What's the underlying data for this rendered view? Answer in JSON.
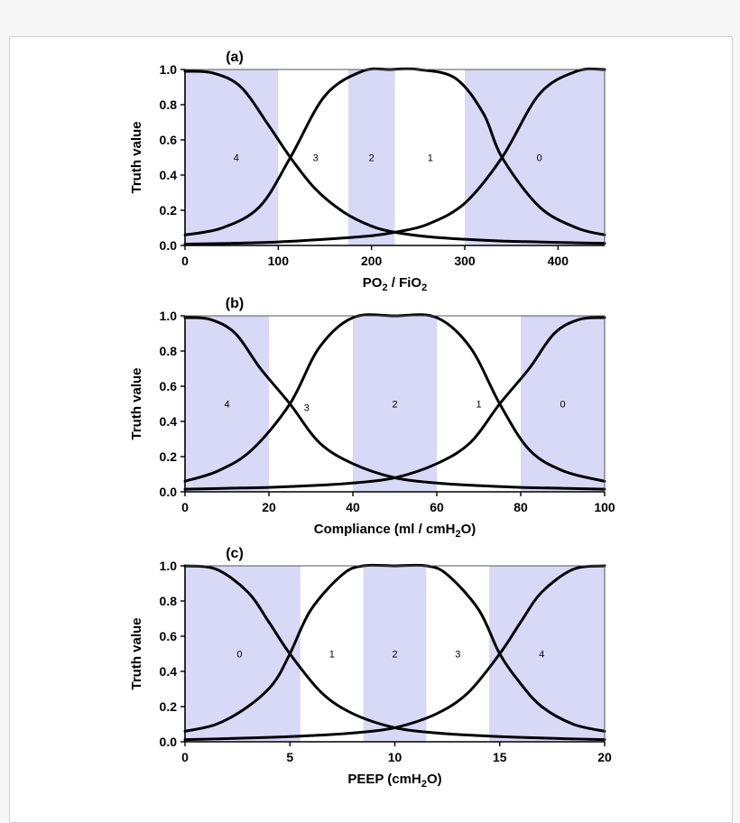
{
  "chart_data": [
    {
      "type": "line",
      "panel_label": "(a)",
      "xlabel": "PO2 / FiO2",
      "ylabel": "Truth value",
      "xlim": [
        0,
        450
      ],
      "ylim": [
        0,
        1.0
      ],
      "xticks": [
        "0",
        "100",
        "200",
        "300",
        "400"
      ],
      "xtick_values": [
        0,
        100,
        200,
        300,
        400
      ],
      "yticks": [
        "0.0",
        "0.2",
        "0.4",
        "0.6",
        "0.8",
        "1.0"
      ],
      "ytick_values": [
        0,
        0.2,
        0.4,
        0.6,
        0.8,
        1.0
      ],
      "shaded_bands": [
        [
          0,
          100
        ],
        [
          175,
          225
        ],
        [
          300,
          450
        ]
      ],
      "shade_color": "#d8d8f7",
      "curve_color": "#000000",
      "region_labels": [
        {
          "label": "4",
          "x": 55,
          "y": 0.5
        },
        {
          "label": "3",
          "x": 140,
          "y": 0.5
        },
        {
          "label": "2",
          "x": 200,
          "y": 0.5
        },
        {
          "label": "1",
          "x": 263,
          "y": 0.5
        },
        {
          "label": "0",
          "x": 380,
          "y": 0.5
        }
      ],
      "series": [
        {
          "x": [
            0,
            30,
            60,
            90,
            113,
            140,
            170,
            200,
            225,
            260,
            300,
            340,
            380,
            420,
            450
          ],
          "y": [
            0.99,
            0.98,
            0.9,
            0.68,
            0.5,
            0.32,
            0.19,
            0.11,
            0.075,
            0.05,
            0.035,
            0.025,
            0.02,
            0.015,
            0.012
          ]
        },
        {
          "x": [
            0,
            40,
            80,
            113,
            150,
            190,
            220,
            250,
            290,
            320,
            340,
            380,
            420,
            450
          ],
          "y": [
            0.06,
            0.1,
            0.22,
            0.5,
            0.85,
            0.99,
            1.0,
            1.0,
            0.95,
            0.75,
            0.5,
            0.22,
            0.1,
            0.06
          ]
        },
        {
          "x": [
            0,
            50,
            100,
            150,
            200,
            225,
            260,
            300,
            340,
            380,
            420,
            450
          ],
          "y": [
            0.008,
            0.012,
            0.02,
            0.035,
            0.055,
            0.075,
            0.12,
            0.24,
            0.5,
            0.86,
            0.99,
            1.0
          ]
        }
      ]
    },
    {
      "type": "line",
      "panel_label": "(b)",
      "xlabel": "Compliance (ml / cmH2O)",
      "ylabel": "Truth value",
      "xlim": [
        0,
        100
      ],
      "ylim": [
        0,
        1.0
      ],
      "xticks": [
        "0",
        "20",
        "40",
        "60",
        "80",
        "100"
      ],
      "xtick_values": [
        0,
        20,
        40,
        60,
        80,
        100
      ],
      "yticks": [
        "0.0",
        "0.2",
        "0.4",
        "0.6",
        "0.8",
        "1.0"
      ],
      "ytick_values": [
        0,
        0.2,
        0.4,
        0.6,
        0.8,
        1.0
      ],
      "shaded_bands": [
        [
          0,
          20
        ],
        [
          40,
          60
        ],
        [
          80,
          100
        ]
      ],
      "shade_color": "#d8d8f7",
      "curve_color": "#000000",
      "region_labels": [
        {
          "label": "4",
          "x": 10,
          "y": 0.5
        },
        {
          "label": "3",
          "x": 29,
          "y": 0.48
        },
        {
          "label": "2",
          "x": 50,
          "y": 0.5
        },
        {
          "label": "1",
          "x": 70,
          "y": 0.5
        },
        {
          "label": "0",
          "x": 90,
          "y": 0.5
        }
      ],
      "series": [
        {
          "x": [
            0,
            6,
            12,
            18,
            25,
            32,
            40,
            50,
            60,
            70,
            80,
            90,
            100
          ],
          "y": [
            0.99,
            0.98,
            0.9,
            0.7,
            0.5,
            0.28,
            0.16,
            0.08,
            0.05,
            0.035,
            0.025,
            0.02,
            0.015
          ]
        },
        {
          "x": [
            0,
            8,
            16,
            25,
            32,
            40,
            50,
            60,
            68,
            75,
            82,
            90,
            100
          ],
          "y": [
            0.06,
            0.12,
            0.24,
            0.5,
            0.82,
            0.99,
            1.0,
            0.99,
            0.82,
            0.5,
            0.24,
            0.12,
            0.06
          ]
        },
        {
          "x": [
            0,
            10,
            20,
            30,
            40,
            50,
            60,
            68,
            75,
            82,
            88,
            94,
            100
          ],
          "y": [
            0.015,
            0.02,
            0.025,
            0.035,
            0.05,
            0.08,
            0.16,
            0.28,
            0.5,
            0.7,
            0.9,
            0.98,
            0.99
          ]
        }
      ]
    },
    {
      "type": "line",
      "panel_label": "(c)",
      "xlabel": "PEEP (cmH2O)",
      "ylabel": "Truth value",
      "xlim": [
        0,
        20
      ],
      "ylim": [
        0,
        1.0
      ],
      "xticks": [
        "0",
        "5",
        "10",
        "15",
        "20"
      ],
      "xtick_values": [
        0,
        5,
        10,
        15,
        20
      ],
      "yticks": [
        "0.0",
        "0.2",
        "0.4",
        "0.6",
        "0.8",
        "1.0"
      ],
      "ytick_values": [
        0,
        0.2,
        0.4,
        0.6,
        0.8,
        1.0
      ],
      "shaded_bands": [
        [
          0,
          5.5
        ],
        [
          8.5,
          11.5
        ],
        [
          14.5,
          20
        ]
      ],
      "shade_color": "#d8d8f7",
      "curve_color": "#000000",
      "region_labels": [
        {
          "label": "0",
          "x": 2.6,
          "y": 0.5
        },
        {
          "label": "1",
          "x": 7,
          "y": 0.5
        },
        {
          "label": "2",
          "x": 10,
          "y": 0.5
        },
        {
          "label": "3",
          "x": 13,
          "y": 0.5
        },
        {
          "label": "4",
          "x": 17,
          "y": 0.5
        }
      ],
      "series": [
        {
          "x": [
            0,
            1.5,
            3,
            4,
            5,
            6.5,
            8,
            10,
            12,
            14,
            16,
            18,
            20
          ],
          "y": [
            1.0,
            0.98,
            0.85,
            0.68,
            0.5,
            0.28,
            0.16,
            0.08,
            0.05,
            0.035,
            0.025,
            0.018,
            0.012
          ]
        },
        {
          "x": [
            0,
            1.5,
            3,
            4.2,
            5,
            6,
            7.5,
            8.5,
            10,
            11.5,
            12.5,
            14,
            15,
            16,
            17,
            18.5,
            20
          ],
          "y": [
            0.06,
            0.1,
            0.2,
            0.33,
            0.5,
            0.75,
            0.95,
            1.0,
            1.0,
            1.0,
            0.95,
            0.75,
            0.5,
            0.33,
            0.2,
            0.1,
            0.06
          ]
        },
        {
          "x": [
            0,
            2,
            4,
            6,
            8,
            10,
            12,
            13.5,
            15,
            16,
            17,
            18.5,
            20
          ],
          "y": [
            0.012,
            0.018,
            0.025,
            0.035,
            0.05,
            0.08,
            0.16,
            0.28,
            0.5,
            0.68,
            0.85,
            0.98,
            1.0
          ]
        }
      ]
    }
  ]
}
